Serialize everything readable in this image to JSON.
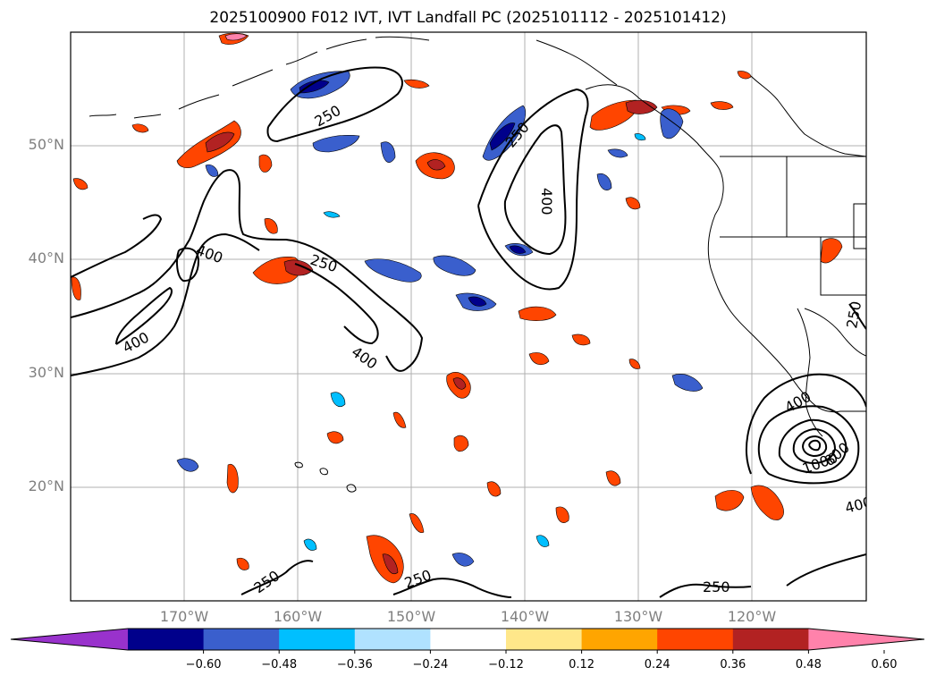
{
  "title": "2025100900 F012 IVT, IVT Landfall PC (2025101112 - 2025101412)",
  "lat_labels": [
    "50°N",
    "40°N",
    "30°N",
    "20°N"
  ],
  "lon_labels": [
    "170°W",
    "160°W",
    "150°W",
    "140°W",
    "130°W",
    "120°W"
  ],
  "contour_labels": [
    "250",
    "250",
    "250",
    "250",
    "250",
    "250",
    "250",
    "400",
    "400",
    "400",
    "400",
    "400",
    "400",
    "1000",
    "800"
  ],
  "colorbar": {
    "ticks": [
      "−0.60",
      "−0.48",
      "−0.36",
      "−0.24",
      "−0.12",
      "0.12",
      "0.24",
      "0.36",
      "0.48",
      "0.60"
    ],
    "colors": [
      "#9932cc",
      "#00008b",
      "#3a5fcd",
      "#00bfff",
      "#b0e2ff",
      "#ffffff",
      "#ffe78a",
      "#ffa500",
      "#ff4500",
      "#b22222",
      "#ff82ab"
    ]
  },
  "map_extent": {
    "lon_min": -180,
    "lon_max": -110,
    "lat_min": 10,
    "lat_max": 60
  }
}
